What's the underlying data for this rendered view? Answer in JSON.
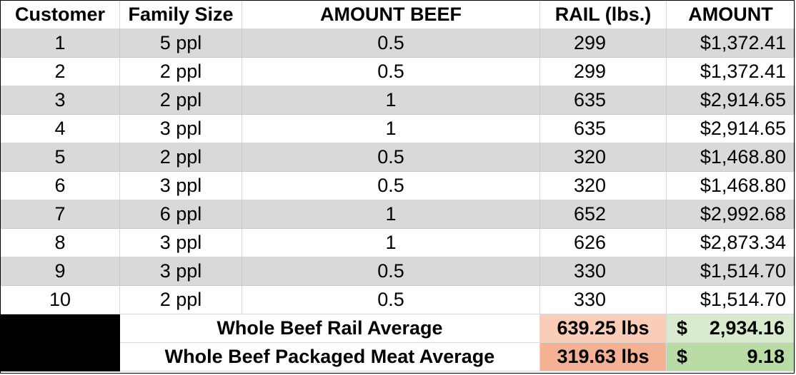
{
  "headers": {
    "customer": "Customer",
    "family_size": "Family Size",
    "amount_beef": "AMOUNT BEEF",
    "rail": "RAIL (lbs.)",
    "amount": "AMOUNT"
  },
  "rows": [
    {
      "customer": "1",
      "family": "5 ppl",
      "beef": "0.5",
      "rail": "299",
      "amount": "$1,372.41"
    },
    {
      "customer": "2",
      "family": "2 ppl",
      "beef": "0.5",
      "rail": "299",
      "amount": "$1,372.41"
    },
    {
      "customer": "3",
      "family": "2 ppl",
      "beef": "1",
      "rail": "635",
      "amount": "$2,914.65"
    },
    {
      "customer": "4",
      "family": "3 ppl",
      "beef": "1",
      "rail": "635",
      "amount": "$2,914.65"
    },
    {
      "customer": "5",
      "family": "2 ppl",
      "beef": "0.5",
      "rail": "320",
      "amount": "$1,468.80"
    },
    {
      "customer": "6",
      "family": "3 ppl",
      "beef": "0.5",
      "rail": "320",
      "amount": "$1,468.80"
    },
    {
      "customer": "7",
      "family": "6 ppl",
      "beef": "1",
      "rail": "652",
      "amount": "$2,992.68"
    },
    {
      "customer": "8",
      "family": "3 ppl",
      "beef": "1",
      "rail": "626",
      "amount": "$2,873.34"
    },
    {
      "customer": "9",
      "family": "3 ppl",
      "beef": "0.5",
      "rail": "330",
      "amount": "$1,514.70"
    },
    {
      "customer": "10",
      "family": "2 ppl",
      "beef": "0.5",
      "rail": "330",
      "amount": "$1,514.70"
    }
  ],
  "summary": {
    "rail_average": {
      "label": "Whole Beef Rail Average",
      "weight": "639.25 lbs",
      "currency": "$",
      "value": "2,934.16"
    },
    "packaged_average": {
      "label": "Whole Beef Packaged Meat Average",
      "weight": "319.63 lbs",
      "currency": "$",
      "value": "9.18"
    }
  }
}
